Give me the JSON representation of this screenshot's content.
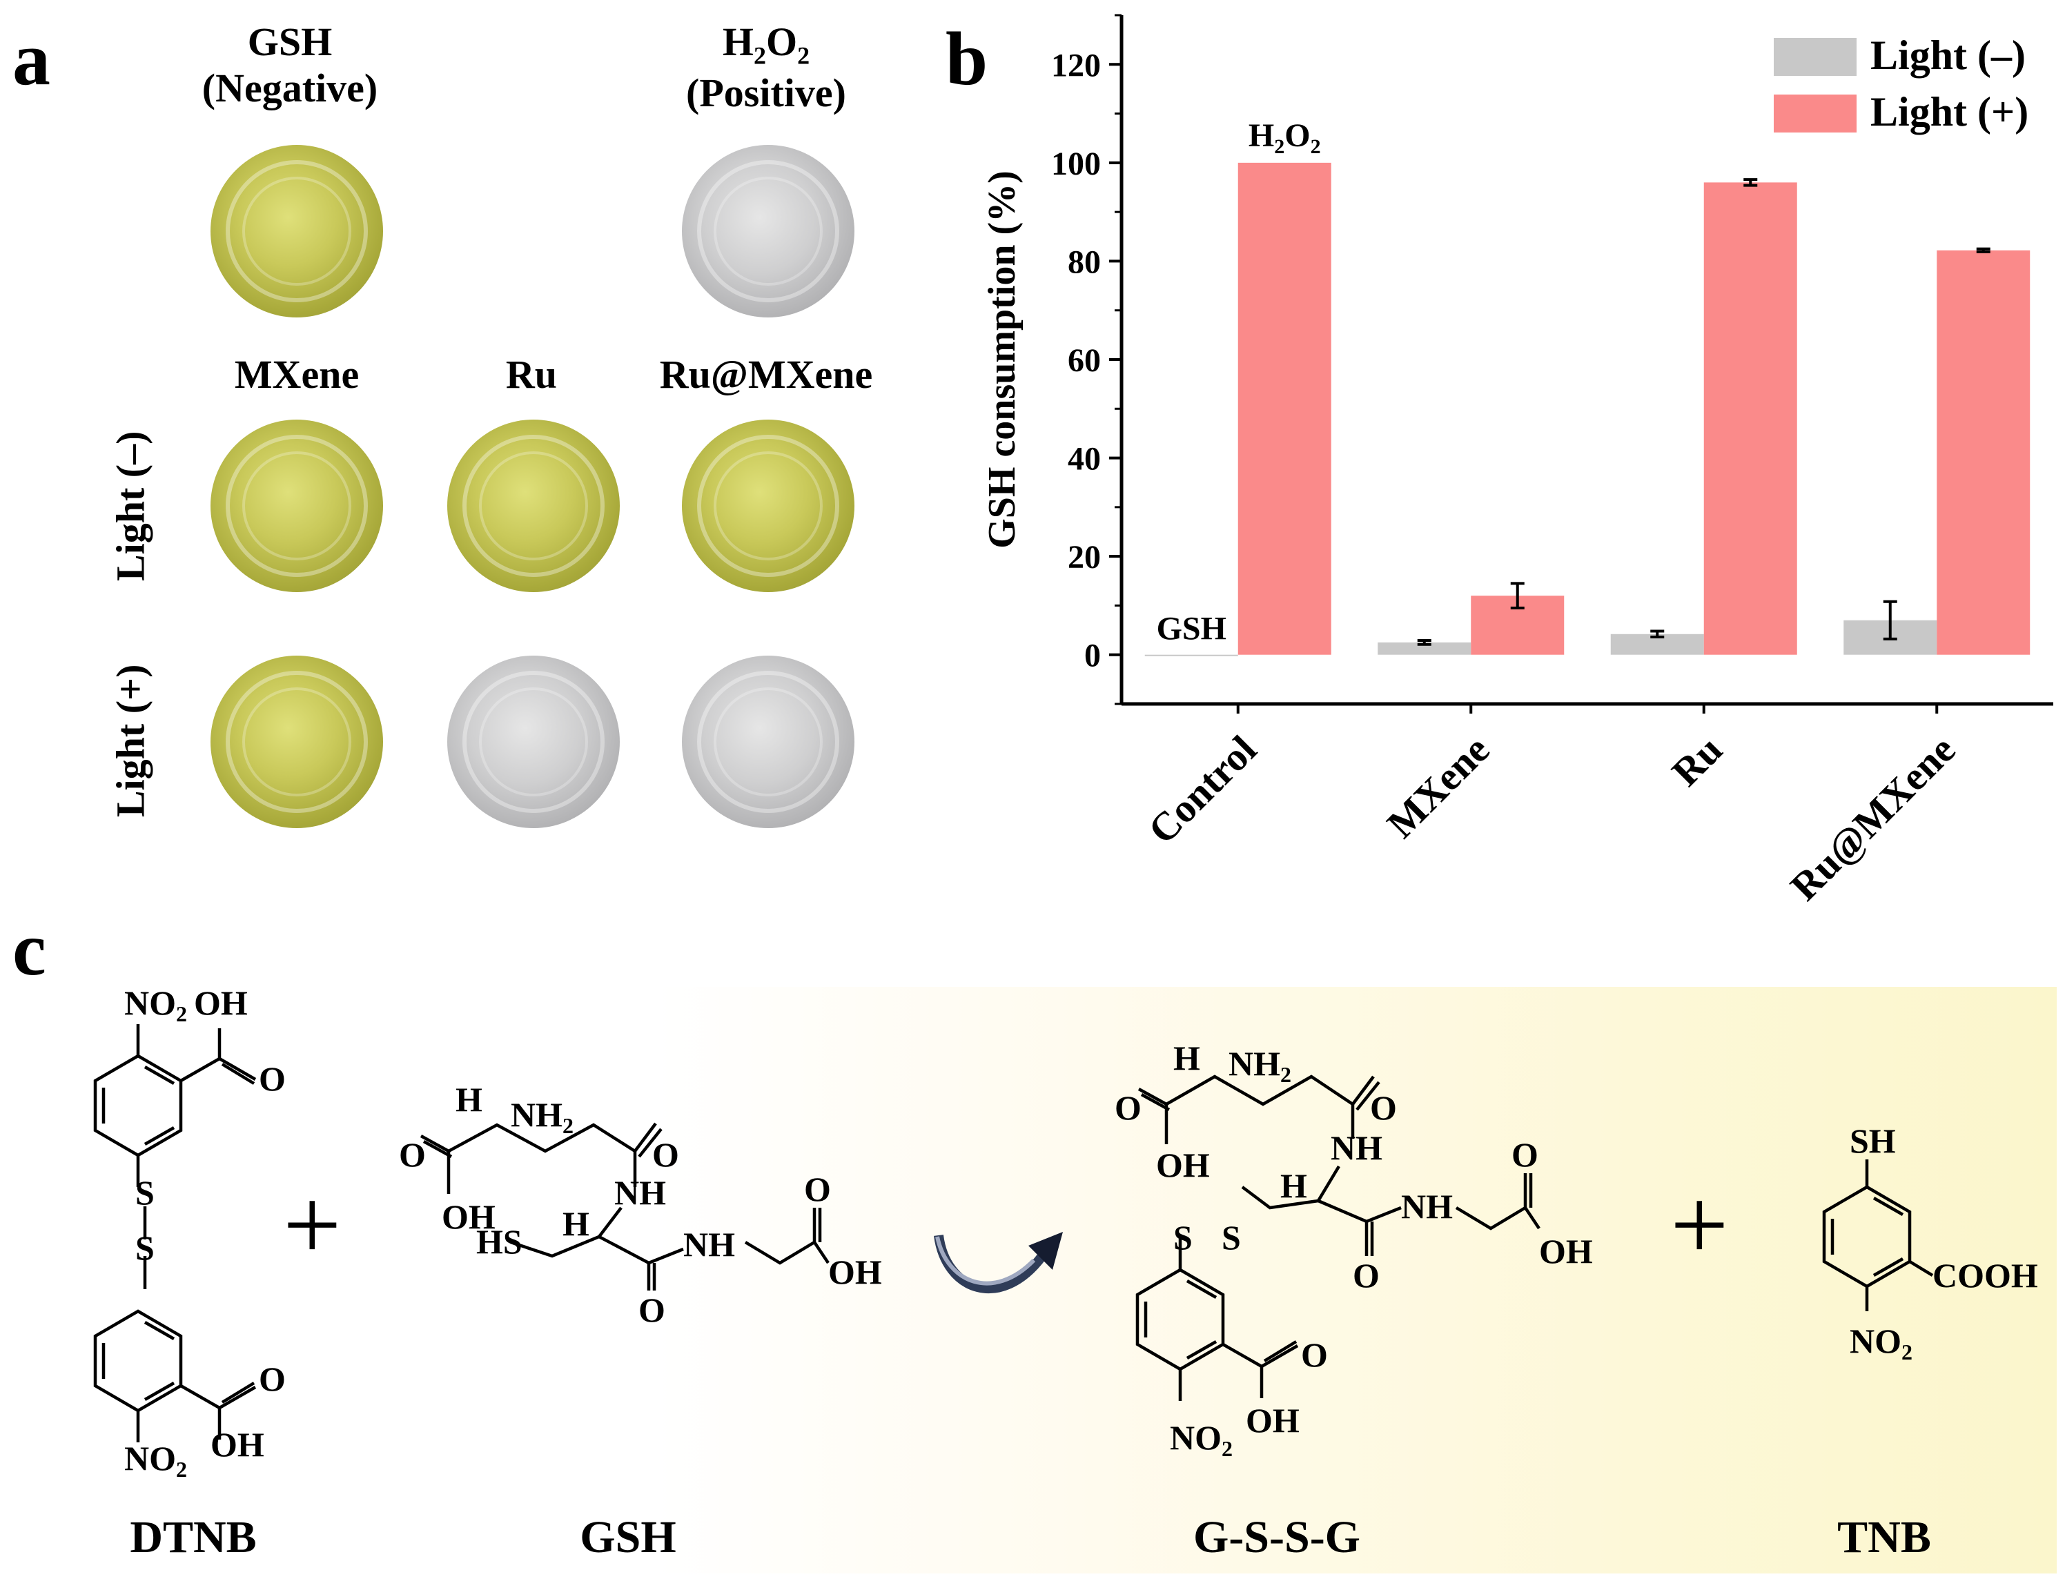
{
  "panels": {
    "a": "a",
    "b": "b",
    "c": "c"
  },
  "panel_a": {
    "top_labels": [
      {
        "line1": "GSH",
        "line2": "(Negative)"
      },
      {
        "line1": "H",
        "sub": "2",
        "mid": "O",
        "sub2": "2",
        "line2": "(Positive)"
      }
    ],
    "col_labels": [
      "MXene",
      "Ru",
      "Ru@MXene"
    ],
    "row_labels": [
      "Light (–)",
      "Light (+)"
    ]
  },
  "chart_data": {
    "type": "bar",
    "categories": [
      "Control",
      "MXene",
      "Ru",
      "Ru@MXene"
    ],
    "series": [
      {
        "name": "Light (–)",
        "color": "#c8c8c8",
        "values": [
          0,
          2.5,
          4.2,
          7.0
        ],
        "errors": [
          0,
          0.4,
          0.6,
          3.8
        ]
      },
      {
        "name": "Light (+)",
        "color": "#fa8a8a",
        "values": [
          100,
          12.0,
          96.0,
          82.2
        ],
        "errors": [
          0,
          2.5,
          0.6,
          0.3
        ]
      }
    ],
    "ylabel": "GSH  consumption (%)",
    "ylim": [
      -10,
      130
    ],
    "yticks": [
      0,
      20,
      40,
      60,
      80,
      100,
      120
    ],
    "legend_position": "top-right",
    "annotations": [
      {
        "text": "GSH",
        "category": "Control",
        "series": 0
      },
      {
        "text": "H2O2",
        "category": "Control",
        "series": 1
      }
    ]
  },
  "panel_c": {
    "names": [
      "DTNB",
      "GSH",
      "G-S-S-G",
      "TNB"
    ],
    "plus": "+"
  }
}
